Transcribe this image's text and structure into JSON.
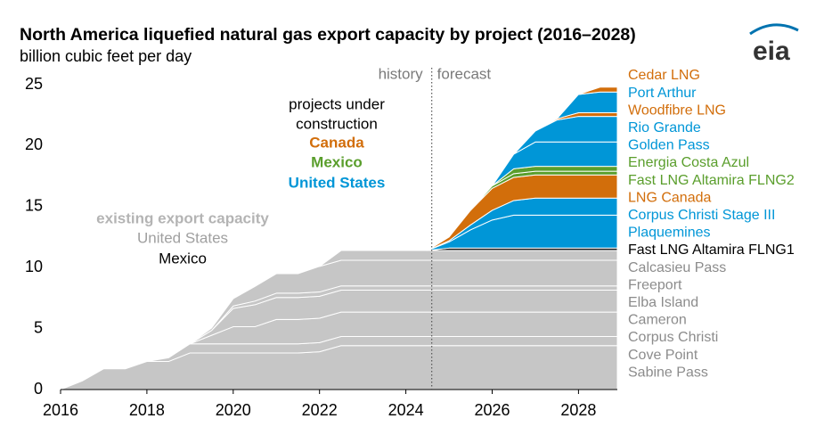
{
  "chart_data": {
    "type": "stacked-area",
    "title": "North America liquefied natural gas export capacity by project (2016–2028)",
    "subtitle": "billion cubic feet per day",
    "logo": "eia",
    "x": [
      2016,
      2016.5,
      2017,
      2017.5,
      2018,
      2018.5,
      2019,
      2019.5,
      2020,
      2020.5,
      2021,
      2021.5,
      2022,
      2022.5,
      2023,
      2023.5,
      2024,
      2024.5,
      2025,
      2025.5,
      2026,
      2026.5,
      2027,
      2027.5,
      2028,
      2028.5,
      2028.9
    ],
    "xlim": [
      2016,
      2028.9
    ],
    "xticks": [
      2016,
      2018,
      2020,
      2022,
      2024,
      2026,
      2028
    ],
    "ylim": [
      0,
      25
    ],
    "yticks": [
      0,
      5,
      10,
      15,
      20,
      25
    ],
    "forecast_start": 2024.6,
    "annotations": [
      "history",
      "forecast"
    ],
    "notes": [
      {
        "text": "projects under",
        "color": "#000000",
        "bold": false
      },
      {
        "text": "construction",
        "color": "#000000",
        "bold": false
      },
      {
        "text": "Canada",
        "color": "#d26e0b",
        "bold": true
      },
      {
        "text": "Mexico",
        "color": "#5a9e2c",
        "bold": true
      },
      {
        "text": "United States",
        "color": "#0096d7",
        "bold": true
      },
      {
        "text": "existing export capacity",
        "color": "#b4b4b4",
        "bold": true
      },
      {
        "text": "United States",
        "color": "#a0a0a0",
        "bold": false
      },
      {
        "text": "Mexico",
        "color": "#000000",
        "bold": false
      }
    ],
    "series": [
      {
        "name": "Sabine Pass",
        "color": "#c6c6c6",
        "label_color": "#8c8c8c",
        "values": [
          0,
          0.7,
          1.7,
          1.7,
          2.3,
          2.3,
          3.0,
          3.0,
          3.0,
          3.0,
          3.0,
          3.0,
          3.1,
          3.6,
          3.6,
          3.6,
          3.6,
          3.6,
          3.6,
          3.6,
          3.6,
          3.6,
          3.6,
          3.6,
          3.6,
          3.6,
          3.6
        ]
      },
      {
        "name": "Cove Point",
        "color": "#c6c6c6",
        "label_color": "#8c8c8c",
        "values": [
          null,
          null,
          null,
          null,
          0,
          0.3,
          0.75,
          0.75,
          0.75,
          0.75,
          0.75,
          0.75,
          0.75,
          0.75,
          0.75,
          0.75,
          0.75,
          0.75,
          0.75,
          0.75,
          0.75,
          0.75,
          0.75,
          0.75,
          0.75,
          0.75,
          0.75
        ]
      },
      {
        "name": "Corpus Christi",
        "color": "#c6c6c6",
        "label_color": "#8c8c8c",
        "values": [
          null,
          null,
          null,
          null,
          null,
          null,
          0,
          0.7,
          1.4,
          1.4,
          2.0,
          2.0,
          2.0,
          2.0,
          2.0,
          2.0,
          2.0,
          2.0,
          2.0,
          2.0,
          2.0,
          2.0,
          2.0,
          2.0,
          2.0,
          2.0,
          2.0
        ]
      },
      {
        "name": "Cameron",
        "color": "#c6c6c6",
        "label_color": "#8c8c8c",
        "values": [
          null,
          null,
          null,
          null,
          null,
          null,
          0,
          0.4,
          1.5,
          1.8,
          1.8,
          1.8,
          1.8,
          1.8,
          1.8,
          1.8,
          1.8,
          1.8,
          1.8,
          1.8,
          1.8,
          1.8,
          1.8,
          1.8,
          1.8,
          1.8,
          1.8
        ]
      },
      {
        "name": "Elba Island",
        "color": "#c6c6c6",
        "label_color": "#8c8c8c",
        "values": [
          null,
          null,
          null,
          null,
          null,
          null,
          null,
          0,
          0.2,
          0.3,
          0.35,
          0.35,
          0.35,
          0.35,
          0.35,
          0.35,
          0.35,
          0.35,
          0.35,
          0.35,
          0.35,
          0.35,
          0.35,
          0.35,
          0.35,
          0.35,
          0.35
        ]
      },
      {
        "name": "Freeport",
        "color": "#c6c6c6",
        "label_color": "#8c8c8c",
        "values": [
          null,
          null,
          null,
          null,
          null,
          null,
          0,
          0.2,
          0.6,
          1.2,
          1.6,
          1.6,
          2.1,
          2.1,
          2.1,
          2.1,
          2.1,
          2.1,
          2.1,
          2.1,
          2.1,
          2.1,
          2.1,
          2.1,
          2.1,
          2.1,
          2.1
        ]
      },
      {
        "name": "Calcasieu Pass",
        "color": "#c6c6c6",
        "label_color": "#8c8c8c",
        "values": [
          null,
          null,
          null,
          null,
          null,
          null,
          null,
          null,
          null,
          null,
          null,
          null,
          0,
          0.8,
          0.8,
          0.8,
          0.8,
          0.8,
          0.8,
          0.8,
          0.8,
          0.8,
          0.8,
          0.8,
          0.8,
          0.8,
          0.8
        ]
      },
      {
        "name": "Fast LNG Altamira FLNG1",
        "color": "#222222",
        "label_color": "#000000",
        "values": [
          null,
          null,
          null,
          null,
          null,
          null,
          null,
          null,
          null,
          null,
          null,
          null,
          null,
          null,
          null,
          null,
          null,
          0,
          0.2,
          0.2,
          0.2,
          0.2,
          0.2,
          0.2,
          0.2,
          0.2,
          0.2
        ]
      },
      {
        "name": "Plaquemines",
        "color": "#0096d7",
        "label_color": "#0096d7",
        "values": [
          null,
          null,
          null,
          null,
          null,
          null,
          null,
          null,
          null,
          null,
          null,
          null,
          null,
          null,
          null,
          null,
          null,
          0,
          0.5,
          1.5,
          2.3,
          2.7,
          2.7,
          2.7,
          2.7,
          2.7,
          2.7
        ]
      },
      {
        "name": "Corpus Christi Stage III",
        "color": "#0096d7",
        "label_color": "#0096d7",
        "values": [
          null,
          null,
          null,
          null,
          null,
          null,
          null,
          null,
          null,
          null,
          null,
          null,
          null,
          null,
          null,
          null,
          null,
          0,
          0.1,
          0.4,
          0.8,
          1.2,
          1.4,
          1.4,
          1.4,
          1.4,
          1.4
        ]
      },
      {
        "name": "LNG Canada",
        "color": "#d26e0b",
        "label_color": "#d26e0b",
        "values": [
          null,
          null,
          null,
          null,
          null,
          null,
          null,
          null,
          null,
          null,
          null,
          null,
          null,
          null,
          null,
          null,
          null,
          0,
          0.3,
          1.2,
          1.8,
          1.9,
          1.9,
          1.9,
          1.9,
          1.9,
          1.9
        ]
      },
      {
        "name": "Fast LNG Altamira FLNG2",
        "color": "#5a9e2c",
        "label_color": "#5a9e2c",
        "values": [
          null,
          null,
          null,
          null,
          null,
          null,
          null,
          null,
          null,
          null,
          null,
          null,
          null,
          null,
          null,
          null,
          null,
          null,
          null,
          0,
          0.2,
          0.3,
          0.3,
          0.3,
          0.3,
          0.3,
          0.3
        ]
      },
      {
        "name": "Energia Costa Azul",
        "color": "#5a9e2c",
        "label_color": "#5a9e2c",
        "values": [
          null,
          null,
          null,
          null,
          null,
          null,
          null,
          null,
          null,
          null,
          null,
          null,
          null,
          null,
          null,
          null,
          null,
          null,
          null,
          null,
          0,
          0.4,
          0.4,
          0.4,
          0.4,
          0.4,
          0.4
        ]
      },
      {
        "name": "Golden Pass",
        "color": "#0096d7",
        "label_color": "#0096d7",
        "values": [
          null,
          null,
          null,
          null,
          null,
          null,
          null,
          null,
          null,
          null,
          null,
          null,
          null,
          null,
          null,
          null,
          null,
          null,
          null,
          null,
          0,
          1.2,
          2.0,
          2.0,
          2.0,
          2.0,
          2.0
        ]
      },
      {
        "name": "Rio Grande",
        "color": "#0096d7",
        "label_color": "#0096d7",
        "values": [
          null,
          null,
          null,
          null,
          null,
          null,
          null,
          null,
          null,
          null,
          null,
          null,
          null,
          null,
          null,
          null,
          null,
          null,
          null,
          null,
          null,
          0,
          0.9,
          1.8,
          2.1,
          2.1,
          2.1
        ]
      },
      {
        "name": "Woodfibre LNG",
        "color": "#d26e0b",
        "label_color": "#d26e0b",
        "values": [
          null,
          null,
          null,
          null,
          null,
          null,
          null,
          null,
          null,
          null,
          null,
          null,
          null,
          null,
          null,
          null,
          null,
          null,
          null,
          null,
          null,
          null,
          0,
          0.1,
          0.3,
          0.3,
          0.3
        ]
      },
      {
        "name": "Port Arthur",
        "color": "#0096d7",
        "label_color": "#0096d7",
        "values": [
          null,
          null,
          null,
          null,
          null,
          null,
          null,
          null,
          null,
          null,
          null,
          null,
          null,
          null,
          null,
          null,
          null,
          null,
          null,
          null,
          null,
          null,
          null,
          0,
          1.5,
          1.7,
          1.7
        ]
      },
      {
        "name": "Cedar LNG",
        "color": "#d26e0b",
        "label_color": "#d26e0b",
        "values": [
          null,
          null,
          null,
          null,
          null,
          null,
          null,
          null,
          null,
          null,
          null,
          null,
          null,
          null,
          null,
          null,
          null,
          null,
          null,
          null,
          null,
          null,
          null,
          null,
          0,
          0.4,
          0.4
        ]
      }
    ]
  }
}
